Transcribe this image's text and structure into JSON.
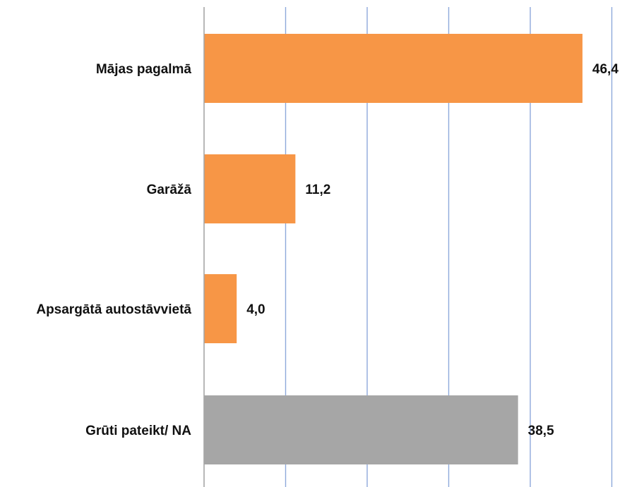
{
  "chart_data": {
    "type": "bar",
    "orientation": "horizontal",
    "categories": [
      "Mājas pagalmā",
      "Garāžā",
      "Apsargātā autostāvvietā",
      "Grūti pateikt/ NA"
    ],
    "values": [
      46.4,
      11.2,
      4.0,
      38.5
    ],
    "value_labels": [
      "46,4",
      "11,2",
      "4,0",
      "38,5"
    ],
    "bar_colors": [
      "#F79646",
      "#F79646",
      "#F79646",
      "#A6A6A6"
    ],
    "xlim": [
      0,
      50
    ],
    "gridline_step": 10,
    "grid": true,
    "gridline_color": "#8EA9DB",
    "axis_color": "#A6A6A6",
    "tick_labels_shown": false,
    "title": "",
    "xlabel": "",
    "ylabel": ""
  }
}
